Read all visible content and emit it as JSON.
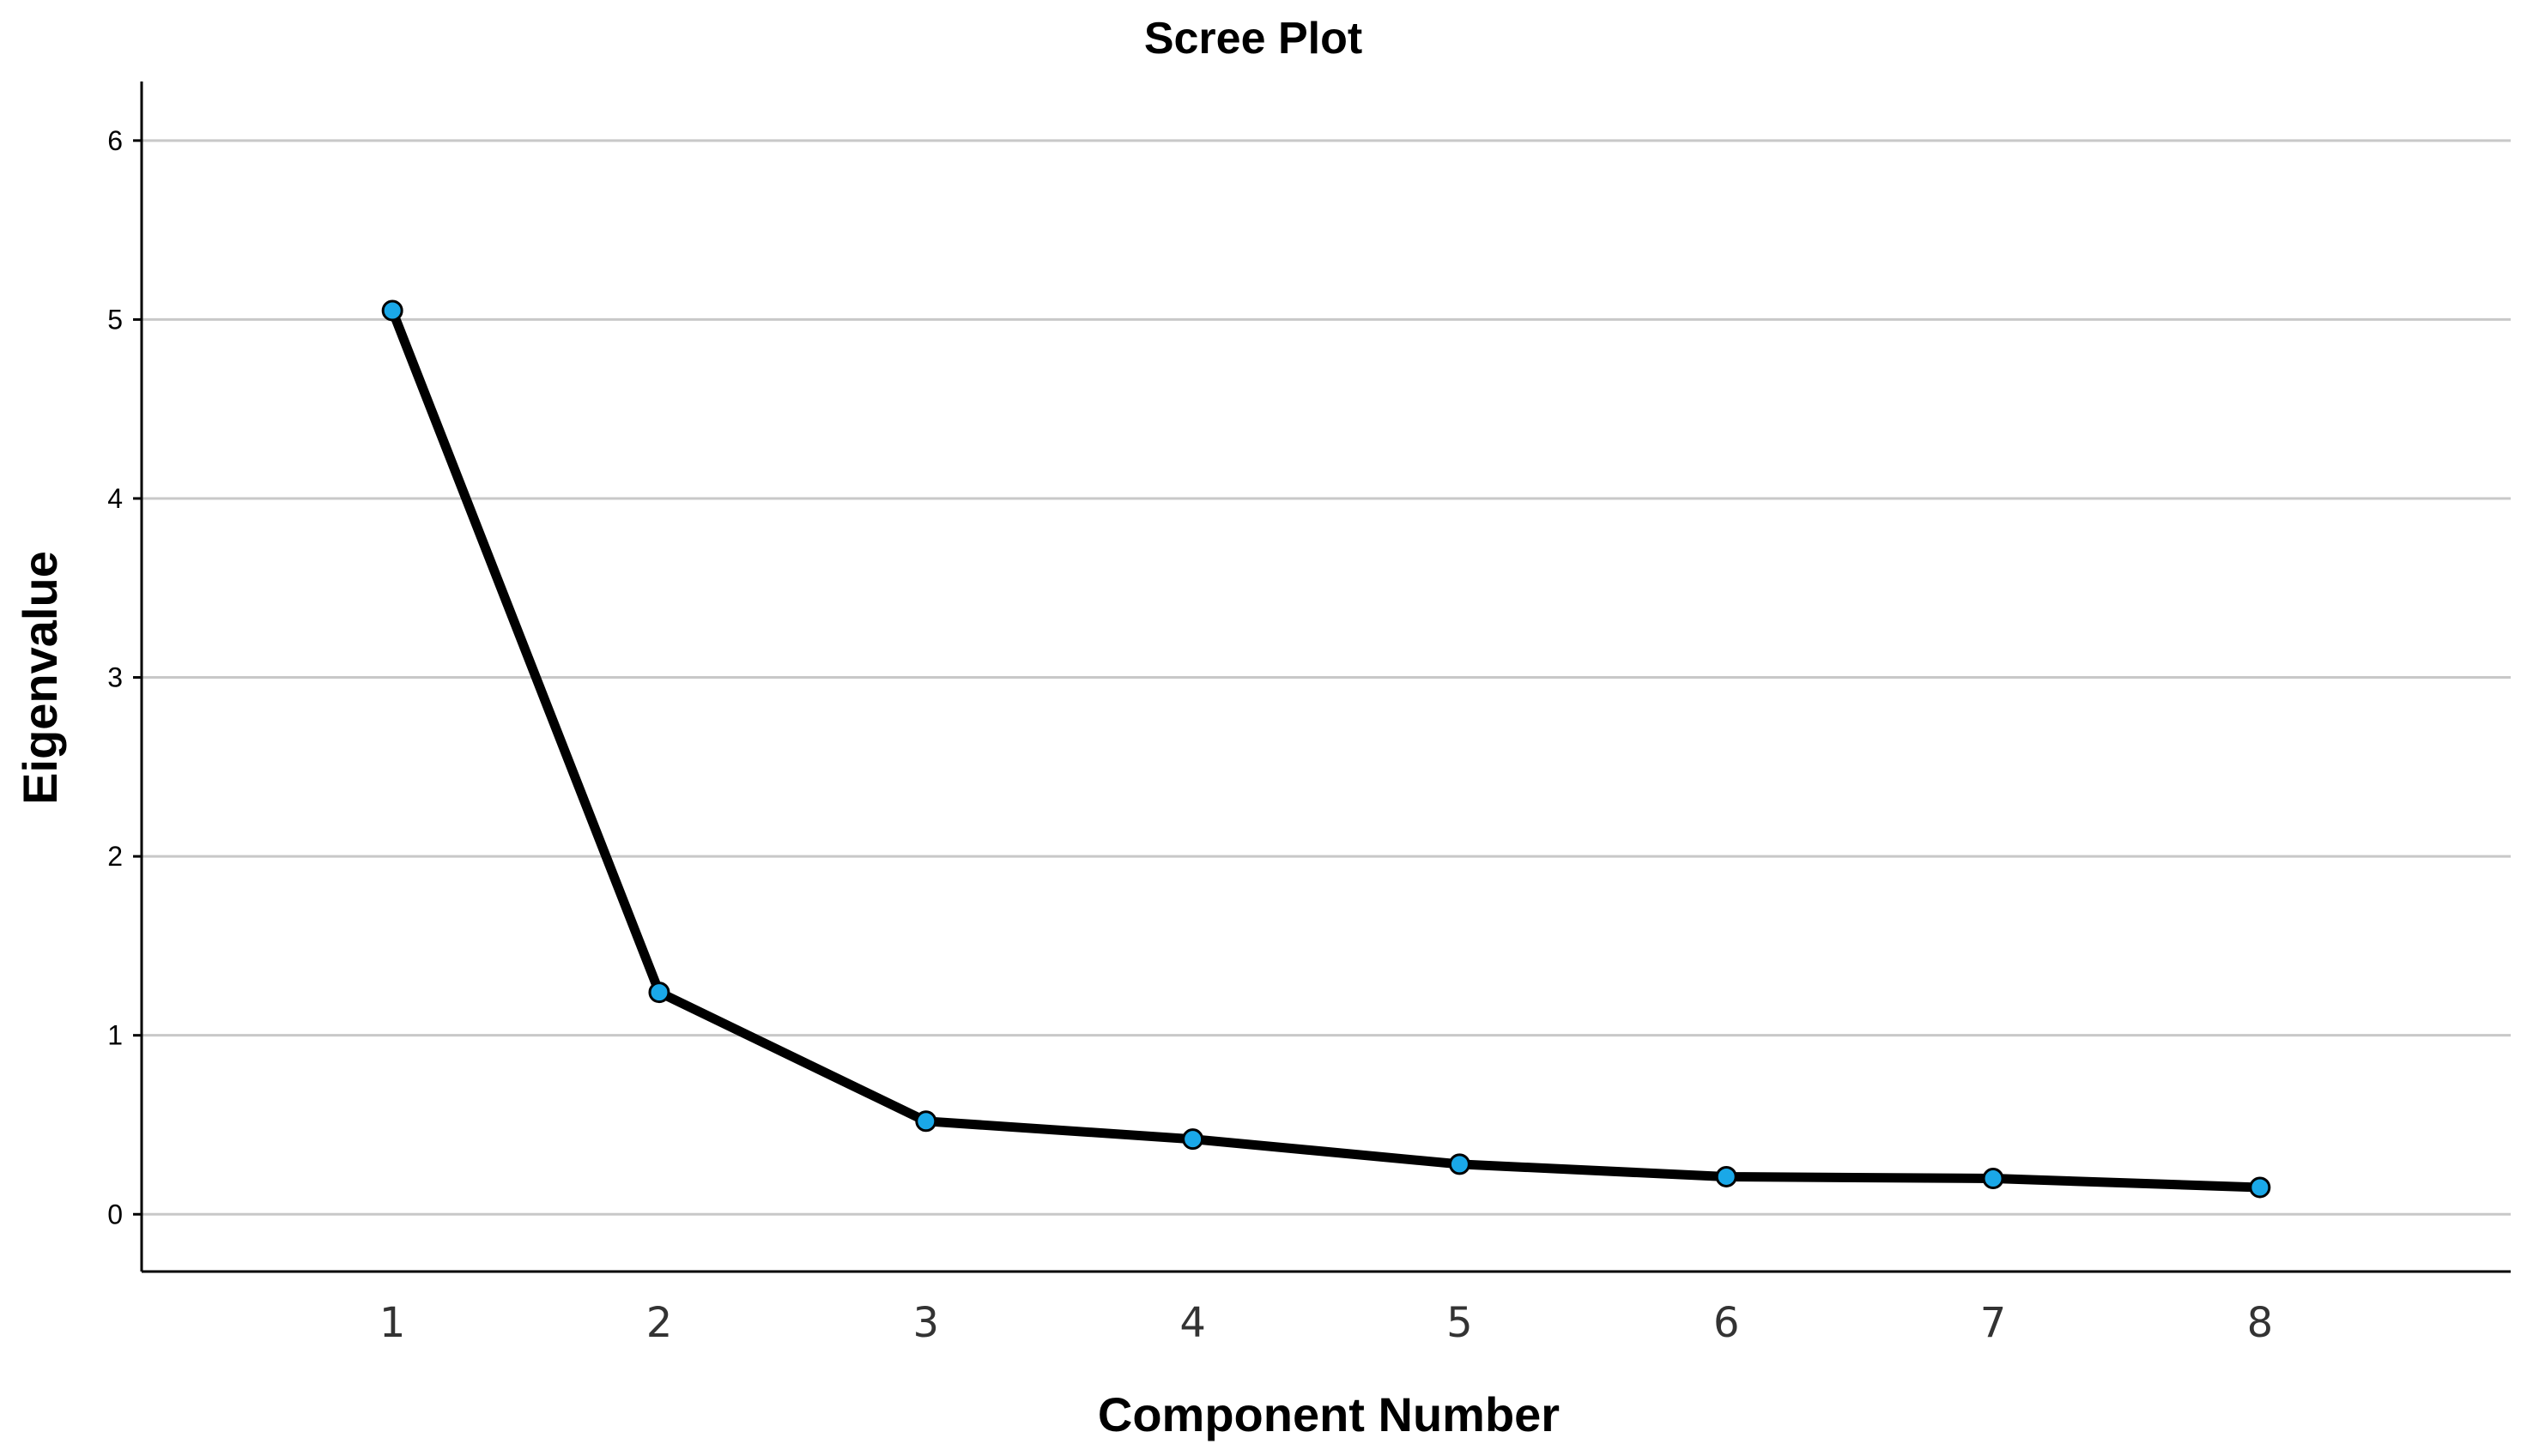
{
  "chart_data": {
    "type": "line",
    "title": "Scree Plot",
    "xlabel": "Component Number",
    "ylabel": "Eigenvalue",
    "x": [
      1,
      2,
      3,
      4,
      5,
      6,
      7,
      8
    ],
    "x_tick_labels": [
      "1",
      "2",
      "3",
      "4",
      "5",
      "6",
      "7",
      "8"
    ],
    "values": [
      5.05,
      1.24,
      0.52,
      0.42,
      0.28,
      0.21,
      0.2,
      0.15
    ],
    "y_ticks": [
      0,
      1,
      2,
      3,
      4,
      5,
      6
    ],
    "y_tick_labels": [
      "0",
      "1",
      "2",
      "3",
      "4",
      "5",
      "6"
    ],
    "ylim": [
      -0.32,
      6.33
    ],
    "xlim": [
      0.06,
      8.94
    ],
    "grid": "horizontal",
    "line_color": "#000000",
    "marker_color": "#1aa8e8",
    "marker_edge_color": "#000000",
    "grid_color": "#c8c8c8"
  }
}
